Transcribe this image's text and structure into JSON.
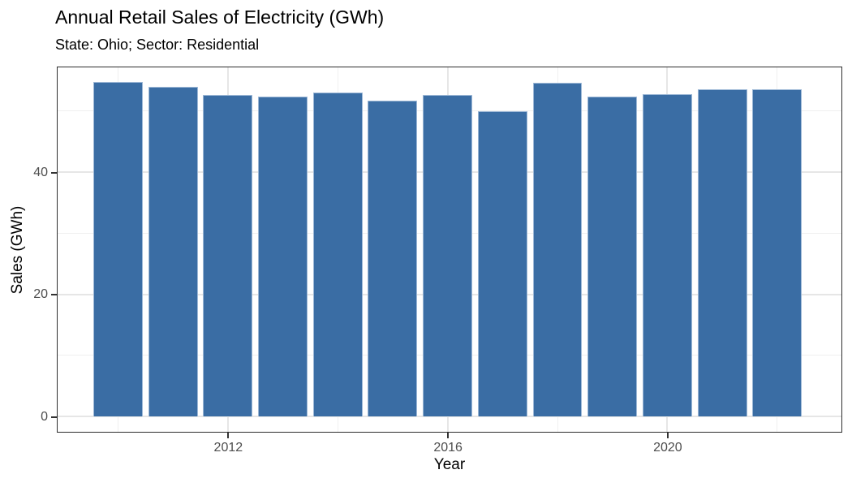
{
  "chart_data": {
    "type": "bar",
    "title": "Annual Retail Sales of Electricity (GWh)",
    "subtitle": "State: Ohio; Sector: Residential",
    "xlabel": "Year",
    "ylabel": "Sales (GWh)",
    "categories": [
      2010,
      2011,
      2012,
      2013,
      2014,
      2015,
      2016,
      2017,
      2018,
      2019,
      2020,
      2021,
      2022
    ],
    "values": [
      54.8,
      54.0,
      52.6,
      52.4,
      53.0,
      51.7,
      52.6,
      50.0,
      54.6,
      52.4,
      52.7,
      53.5,
      53.6
    ],
    "x_major_ticks": [
      2012,
      2016,
      2020
    ],
    "x_minor_gridlines": [
      2010,
      2014,
      2018,
      2022
    ],
    "y_major_ticks": [
      0,
      20,
      40
    ],
    "y_minor_gridlines": [
      10,
      30,
      50
    ],
    "xlim": [
      2008.9,
      2023.17
    ],
    "ylim": [
      -2.51,
      57.14
    ],
    "bar_width_years": 0.9,
    "grid": "on",
    "legend": "none",
    "colors": {
      "bar_fill": "#3a6da4",
      "bar_edge": "#9db8d6",
      "panel_border": "#2e2e2e",
      "grid_major": "#e6e6e6",
      "grid_minor": "#f0f0f0",
      "tick_label": "#4d4d4d",
      "text": "#000000",
      "background": "#ffffff"
    }
  }
}
